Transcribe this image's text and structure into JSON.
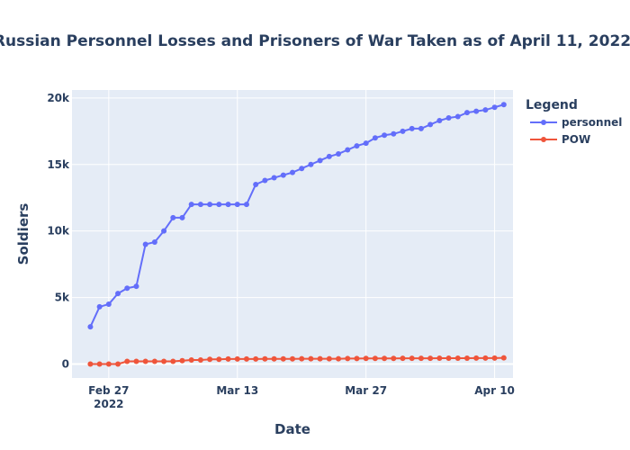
{
  "chart_data": {
    "type": "line",
    "title": "Russian Personnel Losses and Prisoners of War Taken as of April 11, 2022",
    "xlabel": "Date",
    "ylabel": "Soldiers",
    "x_ticks": [
      {
        "date": "2022-02-27",
        "label": "Feb 27",
        "sublabel": "2022"
      },
      {
        "date": "2022-03-13",
        "label": "Mar 13",
        "sublabel": ""
      },
      {
        "date": "2022-03-27",
        "label": "Mar 27",
        "sublabel": ""
      },
      {
        "date": "2022-04-10",
        "label": "Apr 10",
        "sublabel": ""
      }
    ],
    "y_ticks": [
      {
        "value": 0,
        "label": "0"
      },
      {
        "value": 5000,
        "label": "5k"
      },
      {
        "value": 10000,
        "label": "10k"
      },
      {
        "value": 15000,
        "label": "15k"
      },
      {
        "value": 20000,
        "label": "20k"
      }
    ],
    "xlim": [
      "2022-02-23",
      "2022-04-12"
    ],
    "ylim": [
      -1050,
      20600
    ],
    "grid": true,
    "legend": {
      "title": "Legend",
      "position": "top-right"
    },
    "x": [
      "2022-02-25",
      "2022-02-26",
      "2022-02-27",
      "2022-02-28",
      "2022-03-01",
      "2022-03-02",
      "2022-03-03",
      "2022-03-04",
      "2022-03-05",
      "2022-03-06",
      "2022-03-07",
      "2022-03-08",
      "2022-03-09",
      "2022-03-10",
      "2022-03-11",
      "2022-03-12",
      "2022-03-13",
      "2022-03-14",
      "2022-03-15",
      "2022-03-16",
      "2022-03-17",
      "2022-03-18",
      "2022-03-19",
      "2022-03-20",
      "2022-03-21",
      "2022-03-22",
      "2022-03-23",
      "2022-03-24",
      "2022-03-25",
      "2022-03-26",
      "2022-03-27",
      "2022-03-28",
      "2022-03-29",
      "2022-03-30",
      "2022-03-31",
      "2022-04-01",
      "2022-04-02",
      "2022-04-03",
      "2022-04-04",
      "2022-04-05",
      "2022-04-06",
      "2022-04-07",
      "2022-04-08",
      "2022-04-09",
      "2022-04-10",
      "2022-04-11"
    ],
    "series": [
      {
        "name": "personnel",
        "color": "#636efa",
        "values": [
          2800,
          4300,
          4500,
          5300,
          5700,
          5840,
          9000,
          9166,
          10000,
          11000,
          11000,
          12000,
          12000,
          12000,
          12000,
          12000,
          12000,
          12000,
          13500,
          13800,
          14000,
          14200,
          14400,
          14700,
          15000,
          15300,
          15600,
          15800,
          16100,
          16400,
          16600,
          17000,
          17200,
          17300,
          17500,
          17700,
          17700,
          18000,
          18300,
          18500,
          18600,
          18900,
          19000,
          19100,
          19300,
          19500
        ]
      },
      {
        "name": "POW",
        "color": "#ef553b",
        "values": [
          0,
          0,
          0,
          0,
          200,
          200,
          200,
          200,
          200,
          200,
          250,
          300,
          300,
          350,
          350,
          380,
          380,
          380,
          380,
          390,
          390,
          390,
          390,
          400,
          400,
          400,
          400,
          400,
          410,
          410,
          420,
          420,
          420,
          420,
          430,
          430,
          430,
          430,
          440,
          440,
          440,
          440,
          450,
          450,
          450,
          460
        ]
      }
    ]
  }
}
